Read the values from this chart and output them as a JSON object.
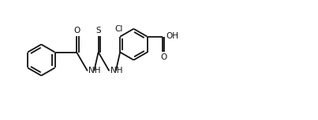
{
  "bg": "#ffffff",
  "lc": "#111111",
  "lw": 1.3,
  "fs": 7.5,
  "fig_w": 4.03,
  "fig_h": 1.53,
  "dpi": 100,
  "xlim": [
    -0.3,
    9.7
  ],
  "ylim": [
    0.2,
    4.2
  ]
}
